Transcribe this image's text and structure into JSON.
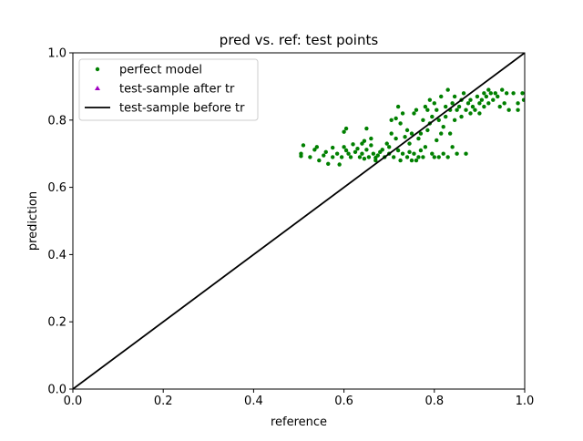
{
  "chart_data": {
    "type": "scatter",
    "title": "pred vs. ref: test points",
    "xlabel": "reference",
    "ylabel": "prediction",
    "xlim": [
      0.0,
      1.0
    ],
    "ylim": [
      0.0,
      1.0
    ],
    "xticks": [
      "0.0",
      "0.2",
      "0.4",
      "0.6",
      "0.8",
      "1.0"
    ],
    "yticks": [
      "0.0",
      "0.2",
      "0.4",
      "0.6",
      "0.8",
      "1.0"
    ],
    "grid": false,
    "legend_placement": "top-left",
    "series": [
      {
        "name": "perfect model",
        "kind": "scatter",
        "marker": "circle",
        "color": "#008000",
        "points": [
          [
            0.505,
            0.7
          ],
          [
            0.505,
            0.693
          ],
          [
            0.51,
            0.725
          ],
          [
            0.525,
            0.69
          ],
          [
            0.535,
            0.712
          ],
          [
            0.54,
            0.72
          ],
          [
            0.545,
            0.68
          ],
          [
            0.555,
            0.695
          ],
          [
            0.56,
            0.705
          ],
          [
            0.565,
            0.67
          ],
          [
            0.575,
            0.718
          ],
          [
            0.575,
            0.69
          ],
          [
            0.585,
            0.7
          ],
          [
            0.59,
            0.668
          ],
          [
            0.595,
            0.69
          ],
          [
            0.6,
            0.72
          ],
          [
            0.6,
            0.765
          ],
          [
            0.605,
            0.71
          ],
          [
            0.605,
            0.775
          ],
          [
            0.61,
            0.7
          ],
          [
            0.615,
            0.69
          ],
          [
            0.62,
            0.728
          ],
          [
            0.625,
            0.705
          ],
          [
            0.63,
            0.715
          ],
          [
            0.635,
            0.69
          ],
          [
            0.64,
            0.7
          ],
          [
            0.64,
            0.73
          ],
          [
            0.645,
            0.685
          ],
          [
            0.645,
            0.738
          ],
          [
            0.65,
            0.712
          ],
          [
            0.65,
            0.775
          ],
          [
            0.655,
            0.69
          ],
          [
            0.66,
            0.725
          ],
          [
            0.66,
            0.745
          ],
          [
            0.665,
            0.7
          ],
          [
            0.67,
            0.68
          ],
          [
            0.67,
            0.688
          ],
          [
            0.675,
            0.695
          ],
          [
            0.68,
            0.705
          ],
          [
            0.685,
            0.712
          ],
          [
            0.69,
            0.69
          ],
          [
            0.695,
            0.73
          ],
          [
            0.7,
            0.72
          ],
          [
            0.7,
            0.7
          ],
          [
            0.705,
            0.76
          ],
          [
            0.705,
            0.8
          ],
          [
            0.71,
            0.69
          ],
          [
            0.715,
            0.745
          ],
          [
            0.715,
            0.805
          ],
          [
            0.72,
            0.71
          ],
          [
            0.72,
            0.84
          ],
          [
            0.725,
            0.68
          ],
          [
            0.725,
            0.79
          ],
          [
            0.73,
            0.7
          ],
          [
            0.73,
            0.82
          ],
          [
            0.735,
            0.75
          ],
          [
            0.74,
            0.69
          ],
          [
            0.74,
            0.77
          ],
          [
            0.745,
            0.705
          ],
          [
            0.745,
            0.73
          ],
          [
            0.75,
            0.68
          ],
          [
            0.75,
            0.76
          ],
          [
            0.755,
            0.82
          ],
          [
            0.755,
            0.7
          ],
          [
            0.76,
            0.83
          ],
          [
            0.76,
            0.68
          ],
          [
            0.765,
            0.69
          ],
          [
            0.765,
            0.745
          ],
          [
            0.77,
            0.71
          ],
          [
            0.77,
            0.76
          ],
          [
            0.775,
            0.8
          ],
          [
            0.775,
            0.69
          ],
          [
            0.78,
            0.84
          ],
          [
            0.78,
            0.72
          ],
          [
            0.785,
            0.83
          ],
          [
            0.785,
            0.77
          ],
          [
            0.79,
            0.79
          ],
          [
            0.79,
            0.86
          ],
          [
            0.795,
            0.81
          ],
          [
            0.795,
            0.7
          ],
          [
            0.8,
            0.69
          ],
          [
            0.8,
            0.85
          ],
          [
            0.805,
            0.83
          ],
          [
            0.805,
            0.74
          ],
          [
            0.81,
            0.69
          ],
          [
            0.81,
            0.8
          ],
          [
            0.815,
            0.76
          ],
          [
            0.815,
            0.87
          ],
          [
            0.82,
            0.78
          ],
          [
            0.82,
            0.7
          ],
          [
            0.825,
            0.81
          ],
          [
            0.825,
            0.84
          ],
          [
            0.83,
            0.69
          ],
          [
            0.83,
            0.89
          ],
          [
            0.835,
            0.83
          ],
          [
            0.835,
            0.76
          ],
          [
            0.84,
            0.85
          ],
          [
            0.84,
            0.72
          ],
          [
            0.845,
            0.8
          ],
          [
            0.845,
            0.87
          ],
          [
            0.85,
            0.83
          ],
          [
            0.85,
            0.7
          ],
          [
            0.855,
            0.84
          ],
          [
            0.86,
            0.86
          ],
          [
            0.86,
            0.81
          ],
          [
            0.865,
            0.88
          ],
          [
            0.87,
            0.83
          ],
          [
            0.87,
            0.7
          ],
          [
            0.875,
            0.85
          ],
          [
            0.88,
            0.82
          ],
          [
            0.88,
            0.86
          ],
          [
            0.885,
            0.84
          ],
          [
            0.89,
            0.83
          ],
          [
            0.895,
            0.87
          ],
          [
            0.9,
            0.85
          ],
          [
            0.9,
            0.82
          ],
          [
            0.905,
            0.86
          ],
          [
            0.91,
            0.84
          ],
          [
            0.91,
            0.88
          ],
          [
            0.915,
            0.87
          ],
          [
            0.92,
            0.85
          ],
          [
            0.92,
            0.89
          ],
          [
            0.925,
            0.88
          ],
          [
            0.93,
            0.86
          ],
          [
            0.935,
            0.88
          ],
          [
            0.94,
            0.87
          ],
          [
            0.945,
            0.84
          ],
          [
            0.95,
            0.89
          ],
          [
            0.955,
            0.85
          ],
          [
            0.96,
            0.88
          ],
          [
            0.965,
            0.83
          ],
          [
            0.975,
            0.88
          ],
          [
            0.985,
            0.85
          ],
          [
            0.985,
            0.83
          ],
          [
            0.995,
            0.88
          ],
          [
            0.998,
            0.86
          ]
        ]
      },
      {
        "name": "test-sample after tr",
        "kind": "scatter",
        "marker": "triangle",
        "color": "#a000c0",
        "points": []
      },
      {
        "name": "test-sample before tr",
        "kind": "line",
        "color": "#000000",
        "points": [
          [
            0.0,
            0.0
          ],
          [
            1.0,
            1.0
          ]
        ]
      }
    ]
  }
}
